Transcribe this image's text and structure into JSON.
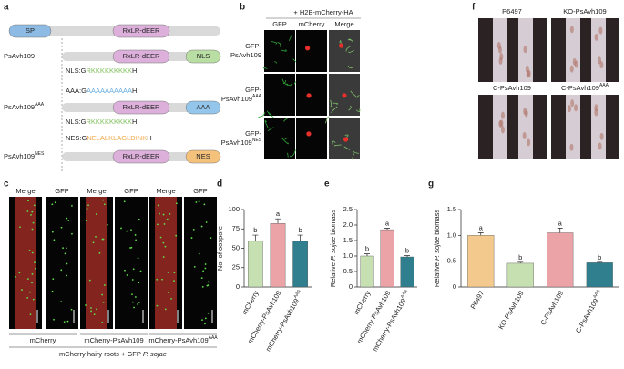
{
  "diagram": {
    "label": "a",
    "rows": [
      {
        "domains": [
          {
            "text": "SP",
            "color": "#8dbbe3"
          },
          {
            "text": "RxLR-dEER",
            "color": "#dcb0da"
          }
        ]
      },
      {
        "name": "PsAvh109",
        "domains": [
          {
            "text": "RxLR-dEER",
            "color": "#dcb0da"
          },
          {
            "text": "NLS",
            "color": "#b9dea4"
          }
        ]
      },
      {
        "name": {
          "text": "PsAvh109",
          "sup": "AAA"
        },
        "domains": [
          {
            "text": "RxLR-dEER",
            "color": "#dcb0da"
          },
          {
            "text": "AAA",
            "color": "#93c6ea"
          }
        ]
      },
      {
        "name": {
          "text": "PsAvh109",
          "sup": "NES"
        },
        "domains": [
          {
            "text": "RxLR-dEER",
            "color": "#dcb0da"
          },
          {
            "text": "NES",
            "color": "#f5c27c"
          }
        ]
      }
    ],
    "sequences": [
      {
        "prefix": "NLS:G",
        "motif": "RKKKKKKKKK",
        "suffix": "H",
        "color": "#7fbf5a"
      },
      {
        "prefix": "AAA:G",
        "motif": "AAAAAAAAAA",
        "suffix": "H",
        "color": "#6aaee0"
      },
      {
        "prefix": "NLS:G",
        "motif": "RKKKKKKKKK",
        "suffix": "H",
        "color": "#7fbf5a"
      },
      {
        "prefix": "NES:G",
        "motif": "NELALKLAGLDINK",
        "suffix": "H",
        "color": "#f0a94a"
      }
    ]
  },
  "microscopy": {
    "label": "b",
    "header": "+ H2B-mCherry-HA",
    "columns": [
      "GFP",
      "mCherry",
      "Merge"
    ],
    "rows": [
      [
        "GFP-",
        "PsAvh109"
      ],
      [
        "GFP-",
        {
          "text": "PsAvh109",
          "sup": "AAA"
        }
      ],
      [
        "GFP-",
        {
          "text": "PsAvh109",
          "sup": "NES"
        }
      ]
    ]
  },
  "hypocotyls": {
    "label": "f",
    "images": [
      "P6497",
      "KO-PsAvh109",
      "C-PsAvh109",
      {
        "text": "C-PsAvh109",
        "sup": "AAA"
      }
    ]
  },
  "roots": {
    "label": "c",
    "columns": [
      "Merge",
      "GFP",
      "Merge",
      "GFP",
      "Merge",
      "GFP"
    ],
    "groups": [
      "mCherry",
      "mCherry-PsAvh109",
      {
        "text": "mCherry-PsAvh109",
        "sup": "AAA"
      }
    ],
    "caption": {
      "text": "mCherry hairy roots + GFP ",
      "italic": "P. sojae"
    }
  },
  "chart_data": [
    {
      "type": "bar",
      "label": "d",
      "ylabel": "No. of oospore",
      "categories": [
        "mCherry",
        "mCherry-PsAvh109",
        {
          "text": "mCherry-PsAvh109",
          "sup": "AAA"
        }
      ],
      "values": [
        59,
        82,
        59
      ],
      "errors": [
        8,
        6,
        8
      ],
      "letters": [
        "b",
        "a",
        "b"
      ],
      "colors": [
        "#c7e0b2",
        "#eba3a8",
        "#2f7f8f"
      ],
      "ylim": [
        0,
        100
      ],
      "yticks": [
        0,
        25,
        50,
        75,
        100
      ]
    },
    {
      "type": "bar",
      "label": "e",
      "ylabel": {
        "text": "Relative ",
        "italic": "P. sojae",
        "after": " biomass"
      },
      "categories": [
        "mCherry",
        "mCherry-PsAvh109",
        {
          "text": "mCherry-PsAvh109",
          "sup": "AAA"
        }
      ],
      "values": [
        1.0,
        1.85,
        0.97
      ],
      "errors": [
        0.07,
        0.05,
        0.04
      ],
      "letters": [
        "b",
        "a",
        "b"
      ],
      "colors": [
        "#c7e0b2",
        "#eba3a8",
        "#2f7f8f"
      ],
      "ylim": [
        0,
        2.5
      ],
      "yticks": [
        0,
        0.5,
        {
          "value": 1,
          "label": "1.0"
        },
        1.5,
        {
          "value": 2,
          "label": "2.0"
        },
        2.5
      ]
    },
    {
      "type": "bar",
      "label": "g",
      "ylabel": {
        "text": "Relative ",
        "italic": "P. sojae",
        "after": " biomass"
      },
      "categories": [
        "P6497",
        "KO-PsAvh109",
        "C-PsAvh109",
        {
          "text": "C-PsAvh109",
          "sup": "AAA"
        }
      ],
      "values": [
        1.0,
        0.46,
        1.05,
        0.47
      ],
      "errors": [
        0.05,
        0.02,
        0.09,
        0.01
      ],
      "letters": [
        "a",
        "b",
        "a",
        "b"
      ],
      "colors": [
        "#f3c98d",
        "#c7e0b2",
        "#eba3a8",
        "#2f7f8f"
      ],
      "ylim": [
        0,
        1.5
      ],
      "yticks": [
        0,
        0.5,
        {
          "value": 1,
          "label": "1.0"
        },
        1.5
      ]
    }
  ]
}
